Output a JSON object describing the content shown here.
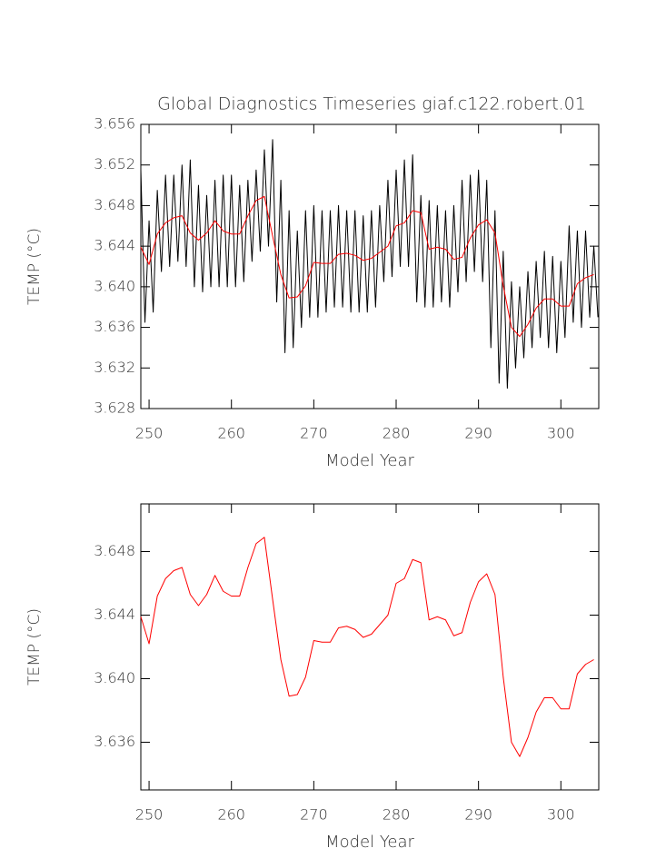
{
  "chart_data": [
    {
      "type": "line",
      "title": "Global Diagnostics Timeseries giaf.c122.robert.01",
      "xlabel": "Model Year",
      "ylabel": "TEMP (°C)",
      "xlim": [
        249,
        304.6
      ],
      "ylim": [
        3.628,
        3.656
      ],
      "xticks": [
        250,
        260,
        270,
        280,
        290,
        300
      ],
      "yticks": [
        3.628,
        3.632,
        3.636,
        {
          "value": 3.64,
          "label": "3.640"
        },
        3.644,
        3.648,
        3.652,
        3.656
      ],
      "series": [
        {
          "color": "#000000",
          "x": [
            249,
            249.5,
            250,
            250.5,
            251,
            251.5,
            252,
            252.5,
            253,
            253.5,
            254,
            254.5,
            255,
            255.5,
            256,
            256.5,
            257,
            257.5,
            258,
            258.5,
            259,
            259.5,
            260,
            260.5,
            261,
            261.5,
            262,
            262.5,
            263,
            263.5,
            264,
            264.5,
            265,
            265.5,
            266,
            266.5,
            267,
            267.5,
            268,
            268.5,
            269,
            269.5,
            270,
            270.5,
            271,
            271.5,
            272,
            272.5,
            273,
            273.5,
            274,
            274.5,
            275,
            275.5,
            276,
            276.5,
            277,
            277.5,
            278,
            278.5,
            279,
            279.5,
            280,
            280.5,
            281,
            281.5,
            282,
            282.5,
            283,
            283.5,
            284,
            284.5,
            285,
            285.5,
            286,
            286.5,
            287,
            287.5,
            288,
            288.5,
            289,
            289.5,
            290,
            290.5,
            291,
            291.5,
            292,
            292.5,
            293,
            293.5,
            294,
            294.5,
            295,
            295.5,
            296,
            296.5,
            297,
            297.5,
            298,
            298.5,
            299,
            299.5,
            300,
            300.5,
            301,
            301.5,
            302,
            302.5,
            303,
            303.5,
            304,
            304.5
          ],
          "values": [
            3.6515,
            3.6365,
            3.6465,
            3.6375,
            3.6495,
            3.6415,
            3.651,
            3.642,
            3.651,
            3.6425,
            3.652,
            3.642,
            3.6525,
            3.64,
            3.65,
            3.6395,
            3.649,
            3.64,
            3.6505,
            3.64,
            3.651,
            3.64,
            3.651,
            3.64,
            3.65,
            3.6405,
            3.6505,
            3.6425,
            3.6515,
            3.6435,
            3.6535,
            3.644,
            3.6545,
            3.6385,
            3.6505,
            3.6335,
            3.6475,
            3.634,
            3.6455,
            3.636,
            3.6475,
            3.637,
            3.648,
            3.637,
            3.6475,
            3.6375,
            3.6475,
            3.638,
            3.648,
            3.638,
            3.6475,
            3.6375,
            3.6475,
            3.6375,
            3.647,
            3.6375,
            3.6475,
            3.638,
            3.648,
            3.6405,
            3.6505,
            3.641,
            3.6515,
            3.642,
            3.6525,
            3.642,
            3.653,
            3.6385,
            3.649,
            3.638,
            3.6485,
            3.638,
            3.648,
            3.6385,
            3.6475,
            3.638,
            3.648,
            3.6395,
            3.6505,
            3.6405,
            3.651,
            3.6415,
            3.6515,
            3.6405,
            3.6505,
            3.634,
            3.6475,
            3.6305,
            3.6435,
            3.63,
            3.6405,
            3.632,
            3.64,
            3.633,
            3.6415,
            3.634,
            3.6425,
            3.635,
            3.6435,
            3.634,
            3.643,
            3.6335,
            3.6425,
            3.635,
            3.646,
            3.6365,
            3.6455,
            3.636,
            3.6455,
            3.637,
            3.644,
            3.637
          ]
        },
        {
          "color": "#ff0000",
          "x": [
            249,
            250,
            251,
            252,
            253,
            254,
            255,
            256,
            257,
            258,
            259,
            260,
            261,
            262,
            263,
            264,
            265,
            266,
            267,
            268,
            269,
            270,
            271,
            272,
            273,
            274,
            275,
            276,
            277,
            278,
            279,
            280,
            281,
            282,
            283,
            284,
            285,
            286,
            287,
            288,
            289,
            290,
            291,
            292,
            293,
            294,
            295,
            296,
            297,
            298,
            299,
            300,
            301,
            302,
            303,
            304
          ],
          "values": [
            3.6439,
            3.6422,
            3.6452,
            3.6463,
            3.6468,
            3.647,
            3.6453,
            3.6446,
            3.6453,
            3.6465,
            3.6455,
            3.6452,
            3.6452,
            3.647,
            3.6485,
            3.6489,
            3.645,
            3.6412,
            3.6389,
            3.639,
            3.6401,
            3.6424,
            3.6423,
            3.6423,
            3.6432,
            3.6433,
            3.6431,
            3.6426,
            3.6428,
            3.6434,
            3.644,
            3.646,
            3.6463,
            3.6475,
            3.6473,
            3.6437,
            3.6439,
            3.6437,
            3.6427,
            3.6429,
            3.6448,
            3.6461,
            3.6466,
            3.6453,
            3.6401,
            3.636,
            3.6351,
            3.6363,
            3.6379,
            3.6388,
            3.6388,
            3.6381,
            3.6381,
            3.6403,
            3.6409,
            3.6412
          ]
        }
      ]
    },
    {
      "type": "line",
      "xlabel": "Model Year",
      "ylabel": "TEMP (°C)",
      "xlim": [
        249,
        304.6
      ],
      "ylim": [
        3.633,
        3.651
      ],
      "xticks": [
        250,
        260,
        270,
        280,
        290,
        300
      ],
      "yticks": [
        3.636,
        {
          "value": 3.64,
          "label": "3.640"
        },
        3.644,
        3.648
      ],
      "series": [
        {
          "color": "#ff0000",
          "x": [
            249,
            250,
            251,
            252,
            253,
            254,
            255,
            256,
            257,
            258,
            259,
            260,
            261,
            262,
            263,
            264,
            265,
            266,
            267,
            268,
            269,
            270,
            271,
            272,
            273,
            274,
            275,
            276,
            277,
            278,
            279,
            280,
            281,
            282,
            283,
            284,
            285,
            286,
            287,
            288,
            289,
            290,
            291,
            292,
            293,
            294,
            295,
            296,
            297,
            298,
            299,
            300,
            301,
            302,
            303,
            304
          ],
          "values": [
            3.6439,
            3.6422,
            3.6452,
            3.6463,
            3.6468,
            3.647,
            3.6453,
            3.6446,
            3.6453,
            3.6465,
            3.6455,
            3.6452,
            3.6452,
            3.647,
            3.6485,
            3.6489,
            3.645,
            3.6412,
            3.6389,
            3.639,
            3.6401,
            3.6424,
            3.6423,
            3.6423,
            3.6432,
            3.6433,
            3.6431,
            3.6426,
            3.6428,
            3.6434,
            3.644,
            3.646,
            3.6463,
            3.6475,
            3.6473,
            3.6437,
            3.6439,
            3.6437,
            3.6427,
            3.6429,
            3.6448,
            3.6461,
            3.6466,
            3.6453,
            3.6401,
            3.636,
            3.6351,
            3.6363,
            3.6379,
            3.6388,
            3.6388,
            3.6381,
            3.6381,
            3.6403,
            3.6409,
            3.6412
          ]
        }
      ]
    }
  ]
}
